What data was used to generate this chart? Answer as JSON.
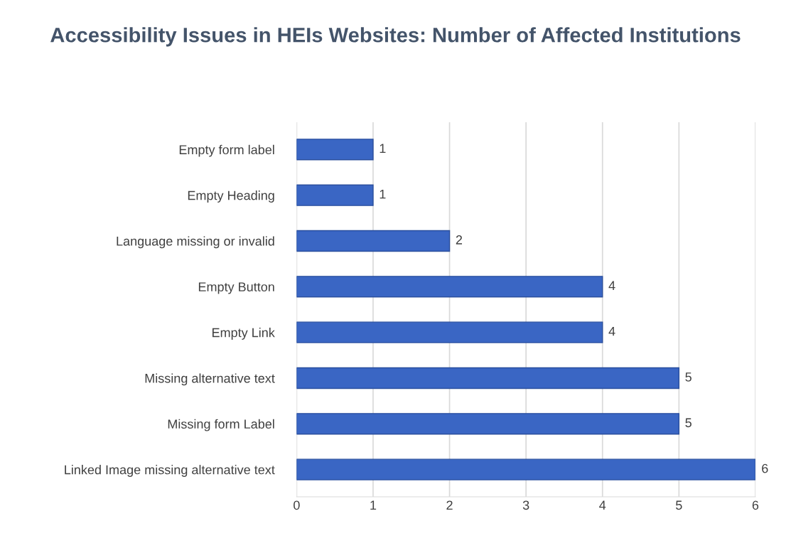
{
  "chart_data": {
    "type": "bar",
    "orientation": "horizontal",
    "title": "Accessibility Issues in HEIs Websites: Number of Affected Institutions",
    "categories": [
      "Empty form label",
      "Empty Heading",
      "Language missing or invalid",
      "Empty Button",
      "Empty Link",
      "Missing alternative text",
      "Missing form Label",
      "Linked Image missing alternative text"
    ],
    "values": [
      1,
      1,
      2,
      4,
      4,
      5,
      5,
      6
    ],
    "color": "#3a66c4",
    "xlim": [
      0,
      6
    ],
    "xticks": [
      0,
      1,
      2,
      3,
      4,
      5,
      6
    ],
    "grid": "x",
    "data_labels": true
  }
}
